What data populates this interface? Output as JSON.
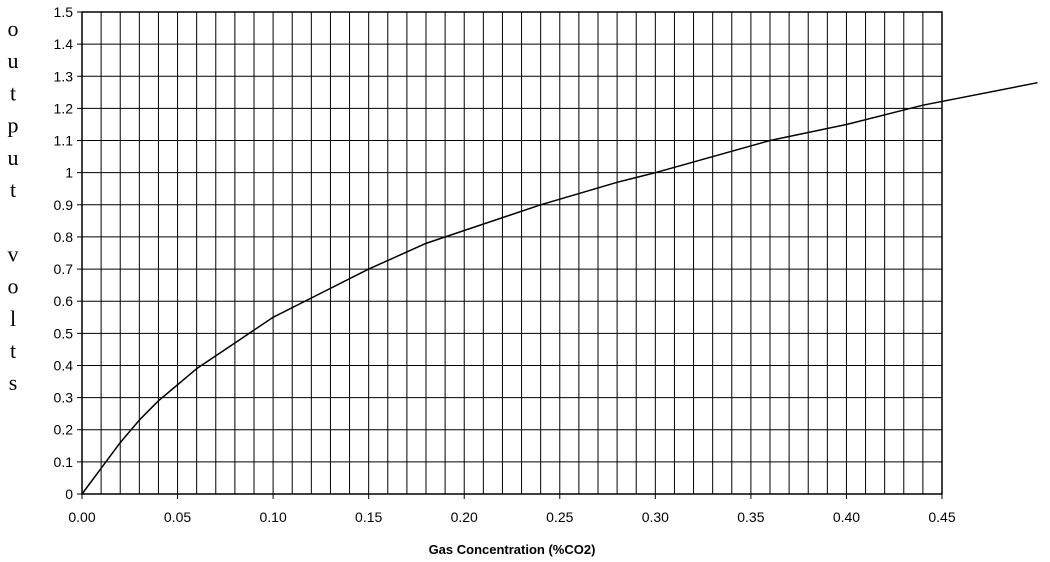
{
  "chart_data": {
    "type": "line",
    "title": "",
    "xlabel": "Gas Concentration (%CO2)",
    "ylabel": "output volts",
    "ylabel_letters": [
      "o",
      "u",
      "t",
      "p",
      "u",
      "t",
      "",
      "v",
      "o",
      "l",
      "t",
      "s"
    ],
    "xlim": [
      0,
      0.45
    ],
    "ylim": [
      0,
      1.5
    ],
    "x_ticks": [
      0,
      0.05,
      0.1,
      0.15,
      0.2,
      0.25,
      0.3,
      0.35,
      0.4,
      0.45
    ],
    "x_tick_labels": [
      "0.00",
      "0.05",
      "0.10",
      "0.15",
      "0.20",
      "0.25",
      "0.30",
      "0.35",
      "0.40",
      "0.45"
    ],
    "y_ticks": [
      0,
      0.1,
      0.2,
      0.3,
      0.4,
      0.5,
      0.6,
      0.7,
      0.8,
      0.9,
      1.0,
      1.1,
      1.2,
      1.3,
      1.4,
      1.5
    ],
    "y_tick_labels": [
      "0",
      "0.1",
      "0.2",
      "0.3",
      "0.4",
      "0.5",
      "0.6",
      "0.7",
      "0.8",
      "0.9",
      "1",
      "1.1",
      "1.2",
      "1.3",
      "1.4",
      "1.5"
    ],
    "grid": true,
    "grid_minor_x_step": 0.01,
    "grid_minor_y_step": 0.1,
    "legend": "none",
    "series": [
      {
        "color": "#000000",
        "x": [
          0.0,
          0.01,
          0.02,
          0.03,
          0.04,
          0.05,
          0.06,
          0.08,
          0.1,
          0.12,
          0.15,
          0.18,
          0.2,
          0.24,
          0.28,
          0.3,
          0.36,
          0.4,
          0.44,
          0.5
        ],
        "y": [
          0.0,
          0.08,
          0.16,
          0.23,
          0.29,
          0.34,
          0.39,
          0.47,
          0.55,
          0.61,
          0.7,
          0.78,
          0.82,
          0.9,
          0.97,
          1.0,
          1.1,
          1.15,
          1.21,
          1.28
        ]
      }
    ]
  }
}
